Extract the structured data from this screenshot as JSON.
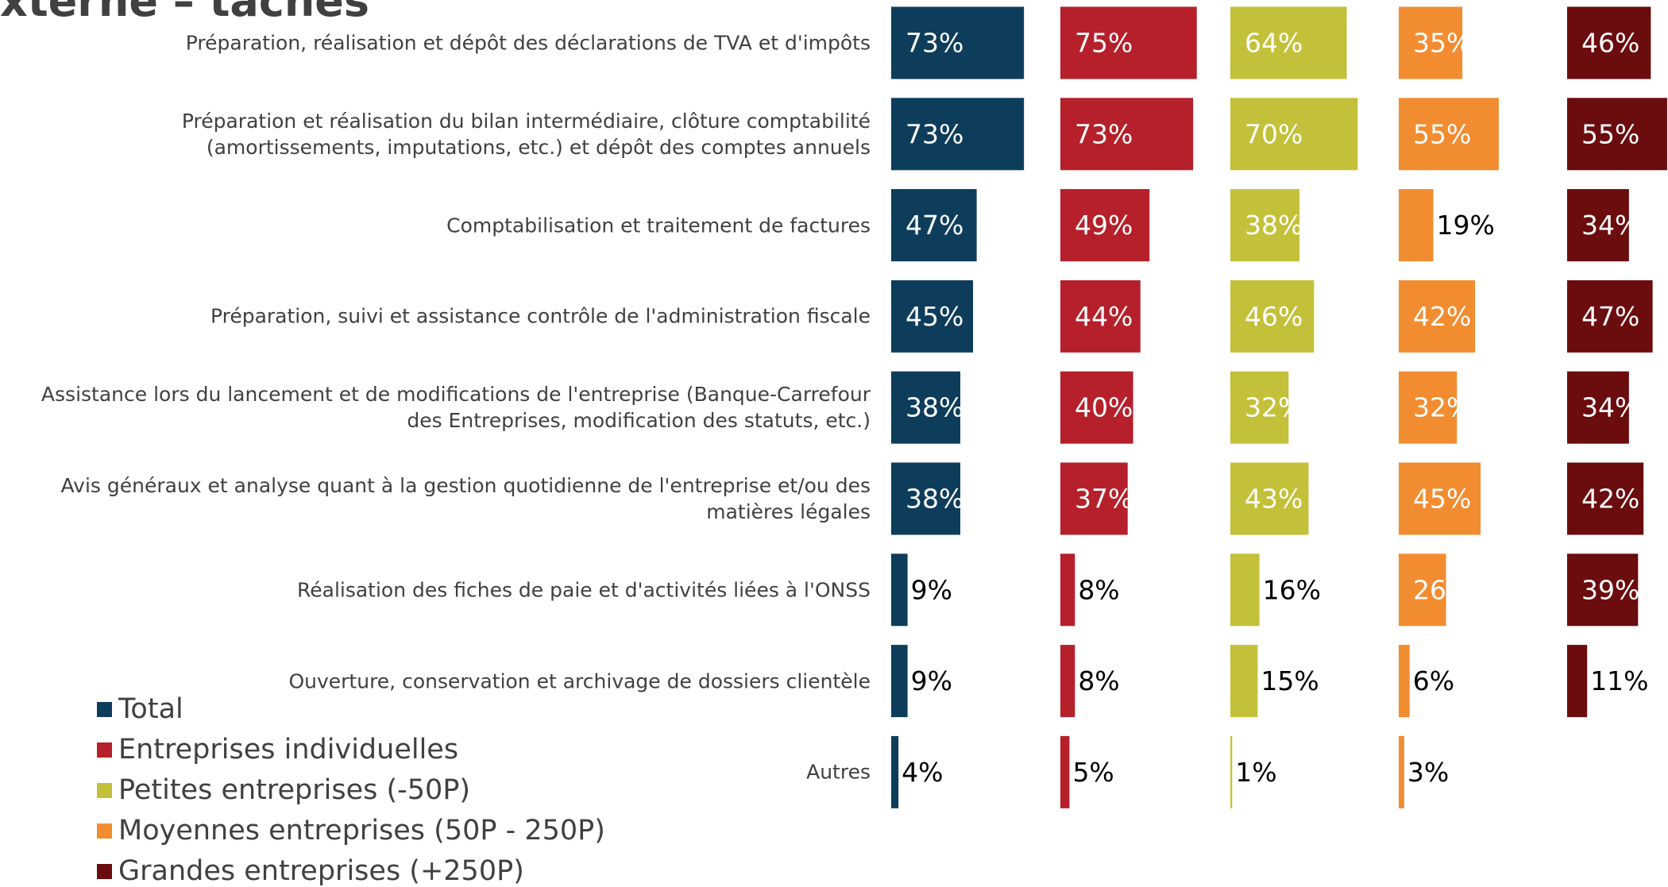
{
  "chart_data": {
    "type": "bar",
    "orientation": "horizontal",
    "title": "xterne – tâches",
    "categories": [
      "Préparation, réalisation et dépôt des déclarations de TVA et d'impôts",
      "Préparation et réalisation du bilan intermédiaire, clôture comptabilité (amortissements, imputations, etc.) et dépôt des comptes annuels",
      "Comptabilisation et traitement de factures",
      "Préparation, suivi et assistance contrôle de l'administration fiscale",
      "Assistance lors du lancement et de modifications de l'entreprise (Banque-Carrefour des Entreprises, modification des statuts, etc.)",
      "Avis généraux et analyse quant à la gestion quotidienne de l'entreprise et/ou des matières légales",
      "Réalisation des fiches de paie et d'activités liées à l'ONSS",
      "Ouverture, conservation et archivage de dossiers clientèle",
      "Autres"
    ],
    "xlim": [
      0,
      100
    ],
    "series": [
      {
        "name": "Total",
        "color": "#0e3d5c",
        "values": [
          73,
          73,
          47,
          45,
          38,
          38,
          9,
          9,
          4
        ],
        "value_labels": [
          "73%",
          "73%",
          "47%",
          "45%",
          "38%",
          "38%",
          "9%",
          "9%",
          "4%"
        ]
      },
      {
        "name": "Entreprises individuelles",
        "color": "#b5202a",
        "values": [
          75,
          73,
          49,
          44,
          40,
          37,
          8,
          8,
          5
        ],
        "value_labels": [
          "75%",
          "73%",
          "49%",
          "44%",
          "40%",
          "37%",
          "8%",
          "8%",
          "5%"
        ]
      },
      {
        "name": "Petites entreprises (-50P)",
        "color": "#c3c03a",
        "values": [
          64,
          70,
          38,
          46,
          32,
          43,
          16,
          15,
          1
        ],
        "value_labels": [
          "64%",
          "70%",
          "38%",
          "46%",
          "32%",
          "43%",
          "16%",
          "15%",
          "1%"
        ]
      },
      {
        "name": "Moyennes entreprises (50P - 250P)",
        "color": "#f28c30",
        "values": [
          35,
          55,
          19,
          42,
          32,
          45,
          26,
          6,
          3
        ],
        "value_labels": [
          "35%",
          "55%",
          "19%",
          "42%",
          "32%",
          "45%",
          "26%",
          "6%",
          "3%"
        ]
      },
      {
        "name": "Grandes entreprises (+250P)",
        "color": "#6b0c0e",
        "values": [
          46,
          55,
          34,
          47,
          34,
          42,
          39,
          11,
          null
        ],
        "value_labels": [
          "46%",
          "55%",
          "34%",
          "47%",
          "34%",
          "42%",
          "39%",
          "11%",
          null
        ]
      }
    ]
  }
}
